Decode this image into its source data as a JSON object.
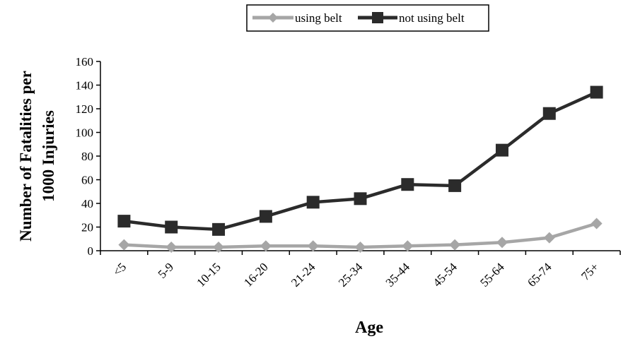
{
  "chart_data": {
    "type": "line",
    "title": "",
    "xlabel": "Age",
    "ylabel_lines": [
      "Number of Fatalities per",
      "1000 Injuries"
    ],
    "categories": [
      "<5",
      "5-9",
      "10-15",
      "16-20",
      "21-24",
      "25-34",
      "35-44",
      "45-54",
      "55-64",
      "65-74",
      "75+"
    ],
    "ylim": [
      0,
      160
    ],
    "yticks": [
      0,
      20,
      40,
      60,
      80,
      100,
      120,
      140,
      160
    ],
    "grid": false,
    "legend_position": "top",
    "series": [
      {
        "name": "using belt",
        "marker": "diamond",
        "color": "#a6a6a6",
        "values": [
          5,
          3,
          3,
          4,
          4,
          3,
          4,
          5,
          7,
          11,
          23
        ]
      },
      {
        "name": "not using belt",
        "marker": "square",
        "color": "#2b2b2b",
        "values": [
          25,
          20,
          18,
          29,
          41,
          44,
          56,
          55,
          85,
          116,
          134
        ]
      }
    ]
  }
}
